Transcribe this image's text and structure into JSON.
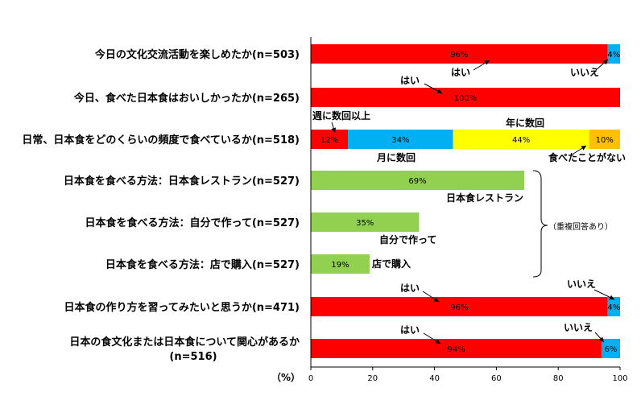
{
  "colors": {
    "red": "#ff0000",
    "blue": "#00b0f0",
    "yellow": "#ffff00",
    "orange": "#ffc000",
    "green": "#92d050"
  },
  "chart_data": {
    "type": "bar",
    "orientation": "horizontal",
    "stacked": true,
    "xlim": [
      0,
      100
    ],
    "xticks": [
      "0",
      "20",
      "40",
      "60",
      "80",
      "100"
    ],
    "unit_label": "（%）",
    "grid": false,
    "rows": [
      {
        "label": "今日の文化交流活動を楽しめたか(n=503)",
        "segments": [
          {
            "value": 96,
            "text": "96%",
            "color": "red"
          },
          {
            "value": 4,
            "text": "4%",
            "color": "blue"
          }
        ]
      },
      {
        "label": "今日、食べた日本食はおいしかったか(n=265)",
        "segments": [
          {
            "value": 100,
            "text": "100%",
            "color": "red"
          }
        ]
      },
      {
        "label": "日常、日本食をどのくらいの頻度で食べているか(n=518)",
        "segments": [
          {
            "value": 12,
            "text": "12%",
            "color": "red"
          },
          {
            "value": 34,
            "text": "34%",
            "color": "blue"
          },
          {
            "value": 44,
            "text": "44%",
            "color": "yellow"
          },
          {
            "value": 10,
            "text": "10%",
            "color": "orange"
          }
        ]
      },
      {
        "label": "日本食を食べる方法：日本食レストラン(n=527)",
        "segments": [
          {
            "value": 69,
            "text": "69%",
            "color": "green"
          }
        ]
      },
      {
        "label": "日本食を食べる方法：自分で作って(n=527)",
        "segments": [
          {
            "value": 35,
            "text": "35%",
            "color": "green"
          }
        ]
      },
      {
        "label": "日本食を食べる方法：店で購入(n=527)",
        "segments": [
          {
            "value": 19,
            "text": "19%",
            "color": "green"
          }
        ]
      },
      {
        "label": "日本食の作り方を習ってみたいと思うか(n=471)",
        "segments": [
          {
            "value": 96,
            "text": "96%",
            "color": "red"
          },
          {
            "value": 4,
            "text": "4%",
            "color": "blue"
          }
        ]
      },
      {
        "label": "日本の食文化または日本食について関心があるか",
        "label2": "(n=516)",
        "segments": [
          {
            "value": 94,
            "text": "94%",
            "color": "red"
          },
          {
            "value": 6,
            "text": "6%",
            "color": "blue"
          }
        ]
      }
    ],
    "annotations": [
      {
        "text": "はい",
        "row": 0,
        "target": 60
      },
      {
        "text": "いいえ",
        "row": 0,
        "target": 98
      },
      {
        "text": "はい",
        "row": 1,
        "target": 43
      },
      {
        "text": "週に数回以上",
        "row": 2,
        "target": 6
      },
      {
        "text": "月に数回",
        "row": 2,
        "target": 29
      },
      {
        "text": "年に数回",
        "row": 2,
        "target": 68
      },
      {
        "text": "食べたことがない",
        "row": 2,
        "target": 95
      },
      {
        "text": "日本食レストラン",
        "row": 3,
        "target": 69
      },
      {
        "text": "自分で作って",
        "row": 4,
        "target": 35
      },
      {
        "text": "店で購入",
        "row": 5,
        "target": 19
      },
      {
        "text": "はい",
        "row": 6,
        "target": 42
      },
      {
        "text": "いいえ",
        "row": 6,
        "target": 98
      },
      {
        "text": "はい",
        "row": 7,
        "target": 42
      },
      {
        "text": "いいえ",
        "row": 7,
        "target": 97
      }
    ],
    "bracket_note": "（重複回答あり）"
  }
}
